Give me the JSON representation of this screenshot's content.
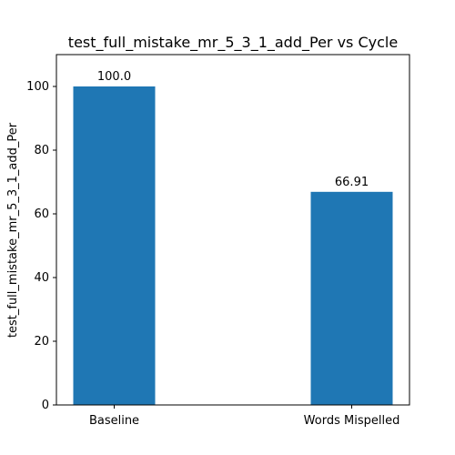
{
  "chart_data": {
    "type": "bar",
    "title": "test_full_mistake_mr_5_3_1_add_Per vs Cycle",
    "xlabel": "",
    "ylabel": "test_full_mistake_mr_5_3_1_add_Per",
    "categories": [
      "Baseline",
      "Words Mispelled"
    ],
    "values": [
      100.0,
      66.91
    ],
    "data_labels": [
      "100.0",
      "66.91"
    ],
    "ylim": [
      0,
      110
    ],
    "yticks": [
      0,
      20,
      40,
      60,
      80,
      100
    ],
    "grid": false,
    "legend": "none",
    "bar_color": "#1f77b4"
  }
}
